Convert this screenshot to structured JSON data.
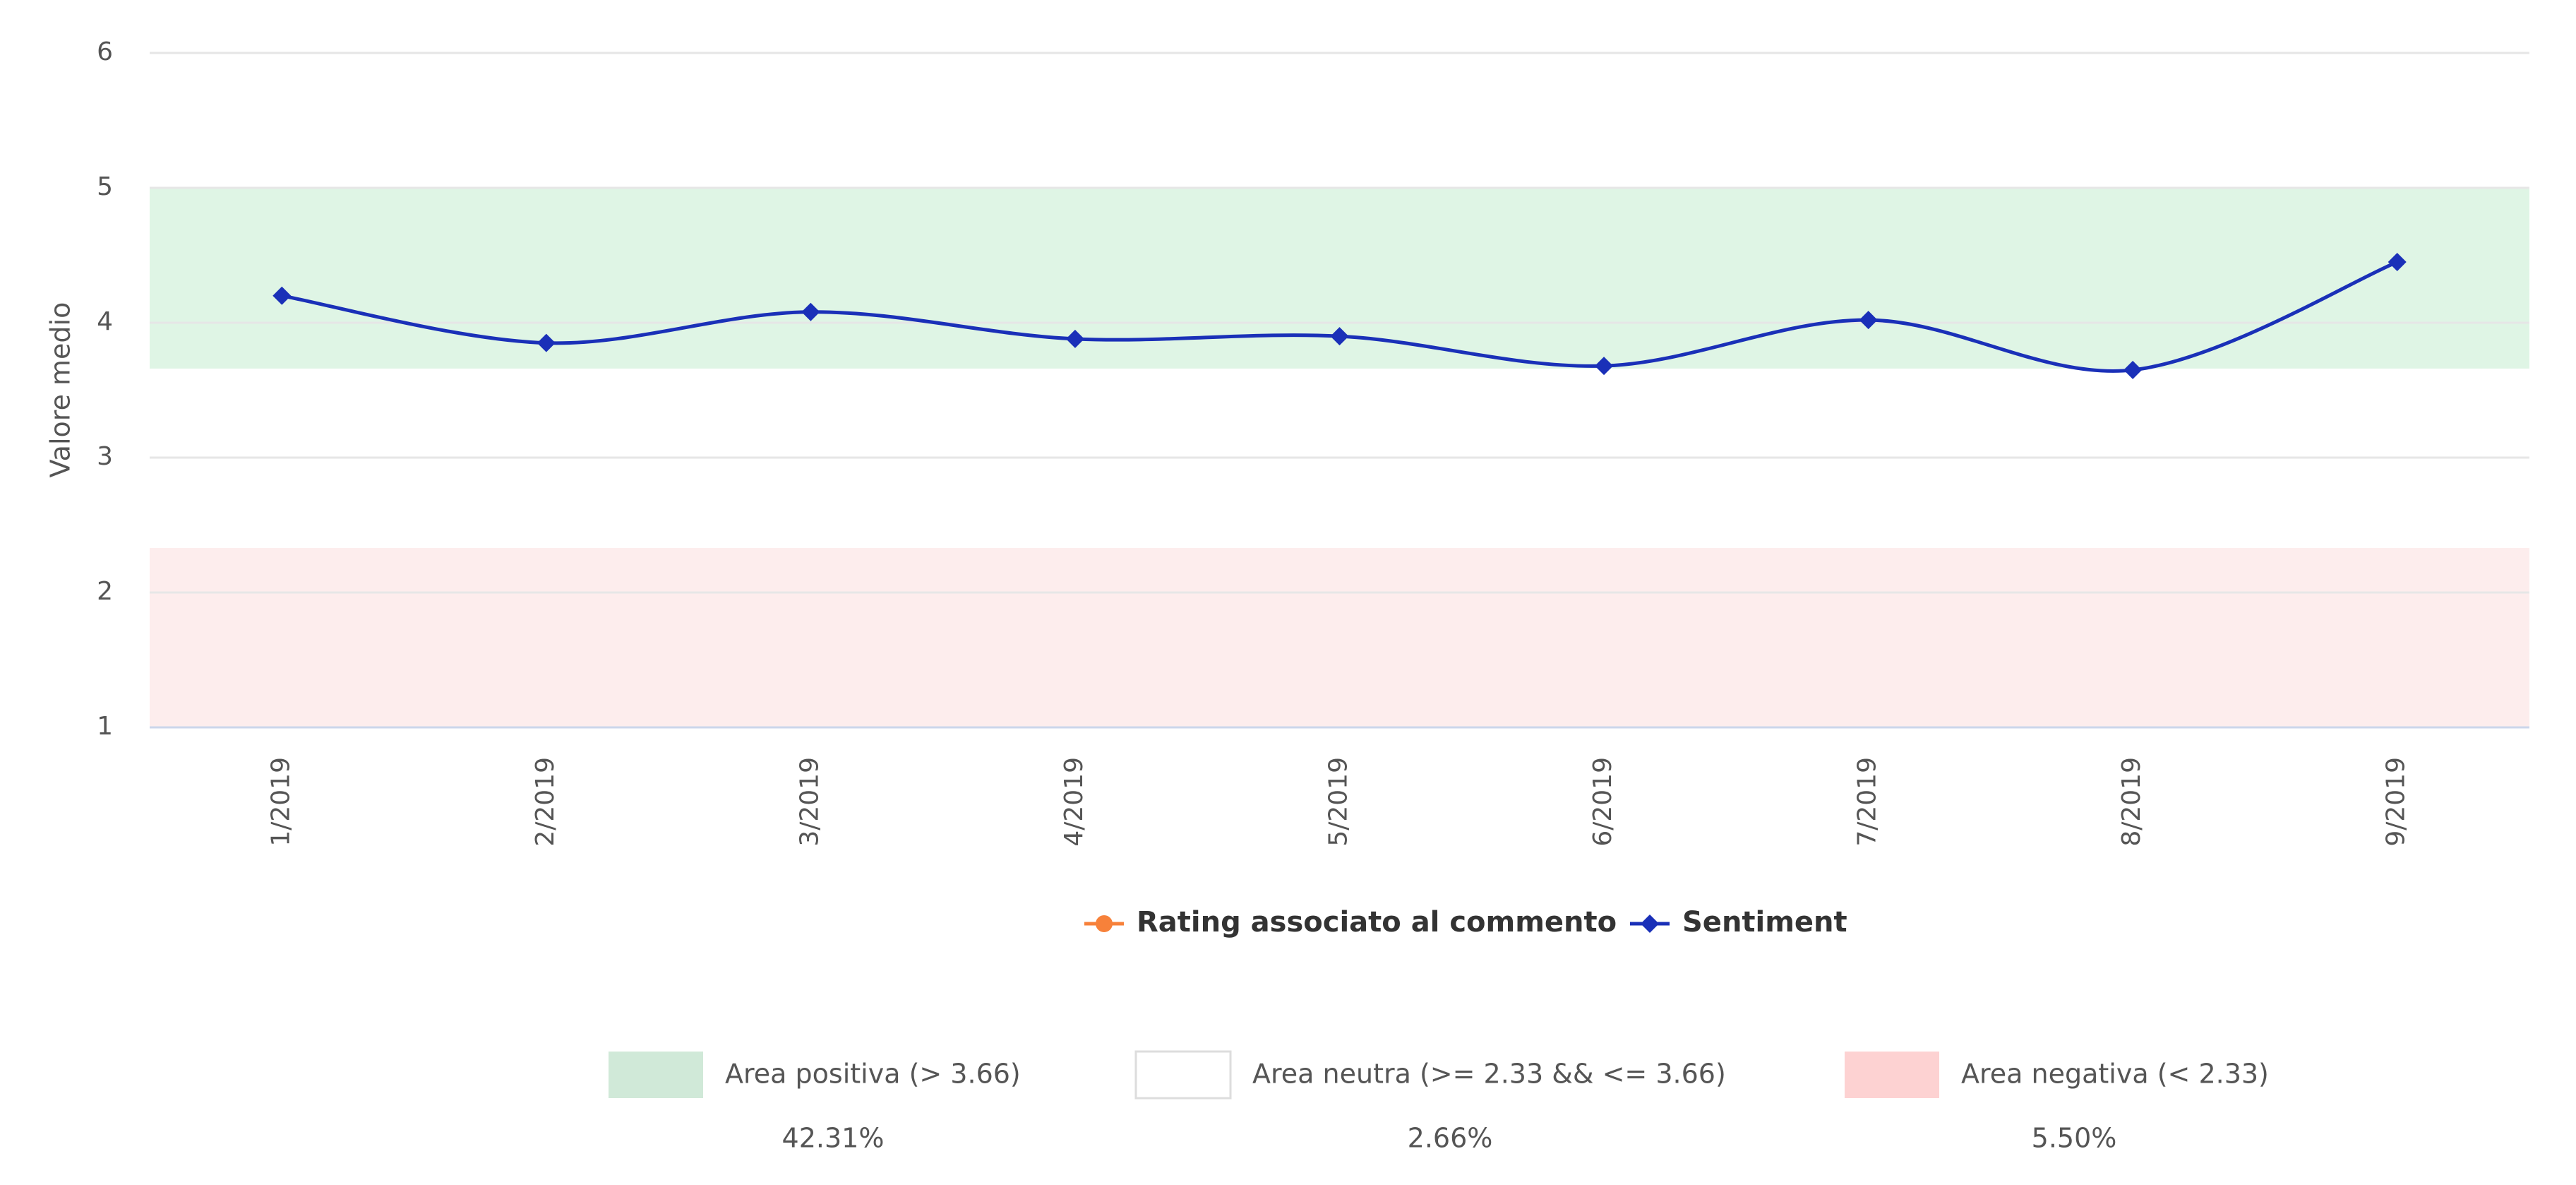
{
  "chart_data": {
    "type": "line",
    "y_label": "Valore medio",
    "categories": [
      "1/2019",
      "2/2019",
      "3/2019",
      "4/2019",
      "5/2019",
      "6/2019",
      "7/2019",
      "8/2019",
      "9/2019"
    ],
    "series": [
      {
        "name": "Rating associato al commento",
        "color": "#f7813a",
        "marker": "circle",
        "values": [
          null,
          null,
          null,
          null,
          null,
          null,
          null,
          null,
          null
        ]
      },
      {
        "name": "Sentiment",
        "color": "#1a30b8",
        "marker": "diamond",
        "values": [
          4.2,
          3.85,
          4.08,
          3.88,
          3.9,
          3.68,
          4.02,
          3.65,
          4.45
        ]
      }
    ],
    "ylim": [
      1,
      6
    ],
    "yticks": [
      1,
      2,
      3,
      4,
      5,
      6
    ],
    "grid": true,
    "bands": [
      {
        "name": "Area positiva (> 3.66)",
        "from": 3.66,
        "to": 5,
        "color": "#dff5e5",
        "value": 42.31,
        "value_label": "42.31%"
      },
      {
        "name": "Area neutra (>= 2.33 && <= 3.66)",
        "from": 2.33,
        "to": 3.66,
        "color": "#ffffff",
        "value": 2.66,
        "value_label": "2.66%"
      },
      {
        "name": "Area negativa (< 2.33)",
        "from": 1,
        "to": 2.33,
        "color": "#fdeded",
        "value": 5.5,
        "value_label": "5.50%"
      }
    ]
  }
}
